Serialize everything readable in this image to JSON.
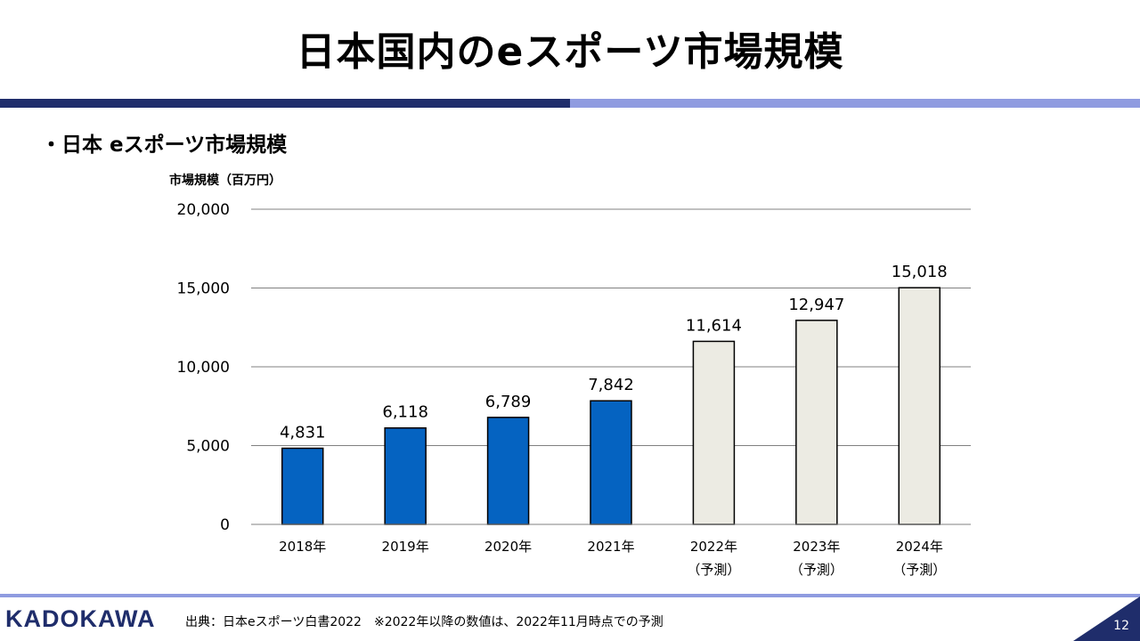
{
  "page": {
    "title": "日本国内のeスポーツ市場規模",
    "subtitle": "・日本 eスポーツ市場規模",
    "source_text": "出典：日本eスポーツ白書2022　※2022年以降の数値は、2022年11月時点での予測",
    "logo_text": "KADOKAWA",
    "page_number": "12",
    "colors": {
      "header_dark": "#1f2d6b",
      "header_light": "#8f9be0"
    }
  },
  "chart_data": {
    "type": "bar",
    "ylabel": "市場規模（百万円）",
    "categories": [
      "2018年",
      "2019年",
      "2020年",
      "2021年",
      "2022年",
      "2023年",
      "2024年"
    ],
    "category_notes": [
      "",
      "",
      "",
      "",
      "（予測）",
      "（予測）",
      "（予測）"
    ],
    "values": [
      4831,
      6118,
      6789,
      7842,
      11614,
      12947,
      15018
    ],
    "value_labels": [
      "4,831",
      "6,118",
      "6,789",
      "7,842",
      "11,614",
      "12,947",
      "15,018"
    ],
    "forecast": [
      false,
      false,
      false,
      false,
      true,
      true,
      true
    ],
    "ylim": [
      0,
      20000
    ],
    "yticks": [
      0,
      5000,
      10000,
      15000,
      20000
    ],
    "ytick_labels": [
      "0",
      "5,000",
      "10,000",
      "15,000",
      "20,000"
    ],
    "grid": true,
    "colors": {
      "actual": "#0563c1",
      "forecast": "#ecebe3",
      "forecast_stroke": "#000000",
      "grid": "#808080"
    }
  }
}
